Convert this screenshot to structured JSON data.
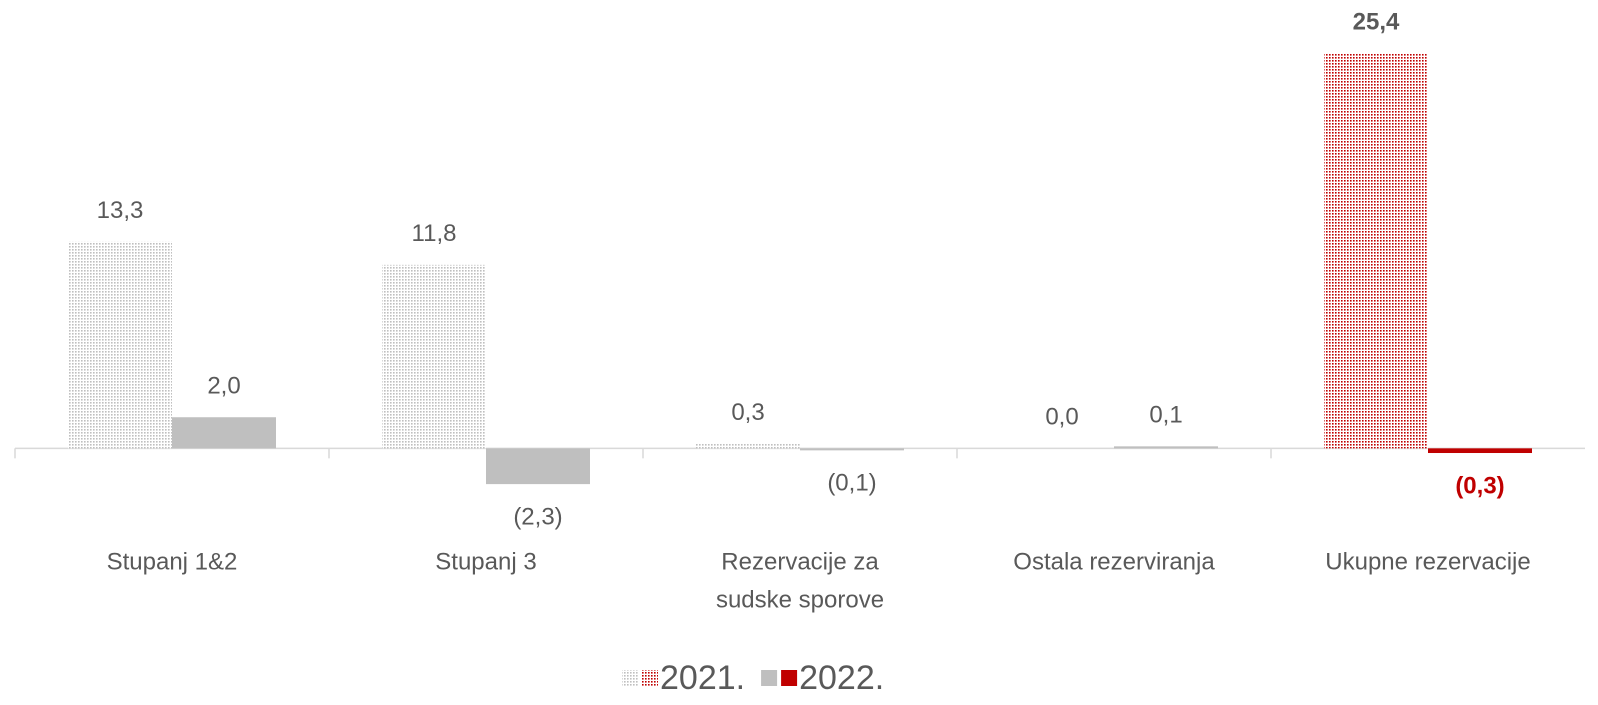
{
  "chart_data": {
    "type": "bar",
    "categories": [
      "Stupanj 1&2",
      "Stupanj 3",
      [
        "Rezervacije za",
        "sudske sporove"
      ],
      "Ostala rezerviranja",
      "Ukupne rezervacije"
    ],
    "series": [
      {
        "name": "2021.",
        "pattern": "dots",
        "colors": [
          "#bfbfbf",
          "#bfbfbf",
          "#bfbfbf",
          "#bfbfbf",
          "#c00000"
        ],
        "label_colors": [
          "#595959",
          "#595959",
          "#595959",
          "#595959",
          "#595959"
        ],
        "values": [
          13.3,
          11.8,
          0.3,
          0.0,
          25.4
        ],
        "value_labels": [
          "13,3",
          "11,8",
          "0,3",
          "0,0",
          "25,4"
        ]
      },
      {
        "name": "2022.",
        "colors": [
          "#bfbfbf",
          "#bfbfbf",
          "#bfbfbf",
          "#bfbfbf",
          "#c00000"
        ],
        "label_colors": [
          "#595959",
          "#595959",
          "#595959",
          "#595959",
          "#c00000"
        ],
        "values": [
          2.0,
          -2.3,
          -0.1,
          0.1,
          -0.3
        ],
        "value_labels": [
          "2,0",
          "(2,3)",
          "(0,1)",
          "0,1",
          "(0,3)"
        ]
      }
    ],
    "ylim": [
      -3,
      26
    ]
  }
}
